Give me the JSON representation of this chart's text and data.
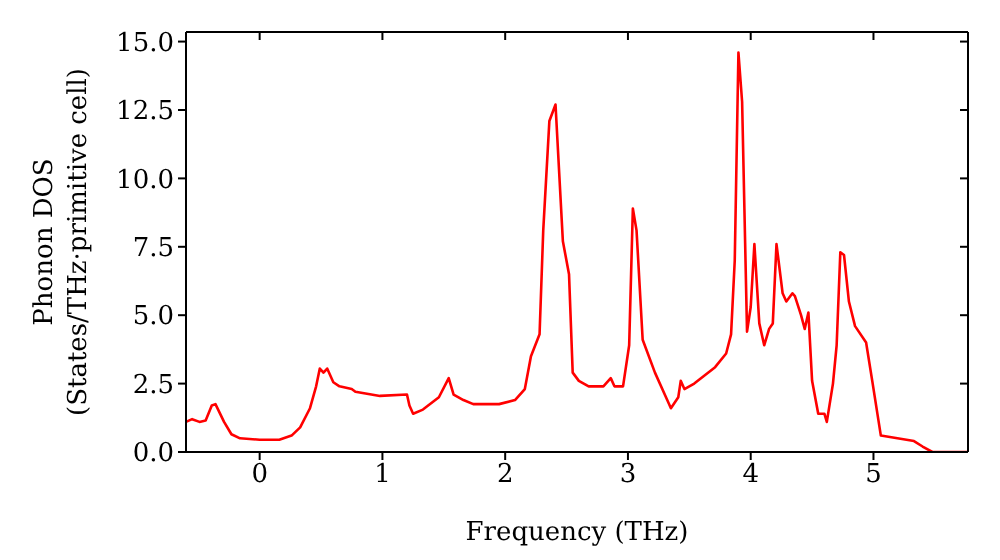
{
  "chart_data": {
    "type": "line",
    "xlabel": "Frequency (THz)",
    "ylabel": "Phonon DOS\n(States/THz·primitive cell)",
    "x": [
      -0.6,
      -0.55,
      -0.49,
      -0.44,
      -0.39,
      -0.36,
      -0.29,
      -0.23,
      -0.16,
      0,
      0.16,
      0.26,
      0.33,
      0.41,
      0.46,
      0.49,
      0.52,
      0.55,
      0.6,
      0.65,
      0.75,
      0.78,
      0.98,
      1.2,
      1.22,
      1.25,
      1.33,
      1.46,
      1.54,
      1.58,
      1.66,
      1.74,
      1.95,
      2.08,
      2.16,
      2.21,
      2.28,
      2.31,
      2.36,
      2.41,
      2.47,
      2.52,
      2.55,
      2.6,
      2.68,
      2.8,
      2.86,
      2.89,
      2.96,
      3.01,
      3.04,
      3.07,
      3.12,
      3.22,
      3.32,
      3.35,
      3.41,
      3.43,
      3.46,
      3.54,
      3.71,
      3.8,
      3.84,
      3.87,
      3.9,
      3.93,
      3.97,
      4.0,
      4.03,
      4.07,
      4.11,
      4.15,
      4.18,
      4.21,
      4.26,
      4.29,
      4.34,
      4.36,
      4.41,
      4.44,
      4.47,
      4.5,
      4.55,
      4.6,
      4.62,
      4.67,
      4.7,
      4.73,
      4.76,
      4.8,
      4.85,
      4.94,
      4.99,
      5.06,
      5.33,
      5.4,
      5.48,
      5.77
    ],
    "series": [
      {
        "color": "#ff0000",
        "values": [
          1.1,
          1.2,
          1.1,
          1.15,
          1.7,
          1.75,
          1.1,
          0.65,
          0.5,
          0.45,
          0.45,
          0.6,
          0.9,
          1.6,
          2.4,
          3.05,
          2.9,
          3.05,
          2.55,
          2.4,
          2.3,
          2.2,
          2.05,
          2.1,
          1.7,
          1.4,
          1.55,
          2.0,
          2.7,
          2.1,
          1.9,
          1.75,
          1.75,
          1.9,
          2.3,
          3.5,
          4.3,
          8.1,
          12.1,
          12.7,
          7.7,
          6.5,
          2.9,
          2.6,
          2.4,
          2.4,
          2.7,
          2.4,
          2.4,
          3.9,
          8.9,
          8.1,
          4.1,
          2.9,
          1.9,
          1.6,
          2.0,
          2.6,
          2.3,
          2.5,
          3.1,
          3.6,
          4.3,
          7.0,
          14.6,
          12.8,
          4.4,
          5.3,
          7.6,
          4.7,
          3.9,
          4.5,
          4.7,
          7.6,
          5.8,
          5.5,
          5.8,
          5.7,
          5.0,
          4.5,
          5.1,
          2.6,
          1.4,
          1.4,
          1.1,
          2.5,
          3.9,
          7.3,
          7.2,
          5.5,
          4.6,
          4.0,
          2.6,
          0.6,
          0.4,
          0.2,
          0,
          0
        ]
      }
    ],
    "xlim": [
      -0.6,
      5.77
    ],
    "xticks": [
      0,
      1,
      2,
      3,
      4,
      5
    ],
    "ylim": [
      0,
      15.35
    ],
    "yticks": [
      {
        "value": 0,
        "label": "0.0"
      },
      {
        "value": 2.5,
        "label": "2.5"
      },
      {
        "value": 5,
        "label": "5.0"
      },
      {
        "value": 7.5,
        "label": "7.5"
      },
      {
        "value": 10,
        "label": "10.0"
      },
      {
        "value": 12.5,
        "label": "12.5"
      },
      {
        "value": 15,
        "label": "15.0"
      }
    ],
    "grid": false,
    "legend": false,
    "marker": "none",
    "line_style": "solid"
  }
}
